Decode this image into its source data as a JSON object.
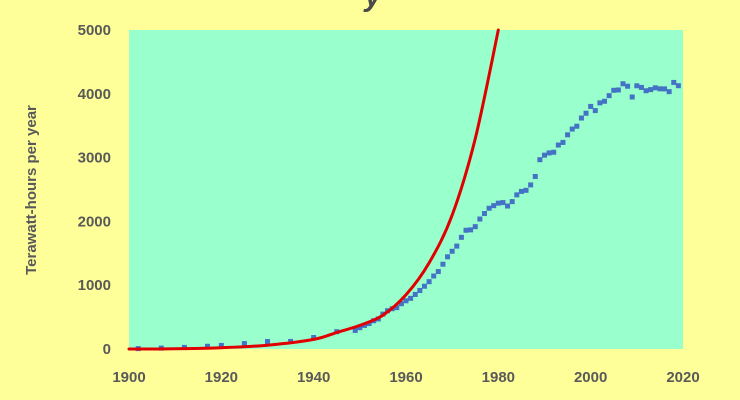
{
  "chart_data": {
    "type": "scatter",
    "title_fragment": "y",
    "xlabel": "",
    "ylabel": "Terawatt-hours per year",
    "xlim": [
      1900,
      2020
    ],
    "ylim": [
      0,
      5000
    ],
    "x_ticks": [
      1900,
      1920,
      1940,
      1960,
      1980,
      2000,
      2020
    ],
    "y_ticks": [
      0,
      1000,
      2000,
      3000,
      4000,
      5000
    ],
    "grid": false,
    "legend": "none",
    "colors": {
      "plot_background": "#99ffcc",
      "page_background": "#ffff99",
      "points": "#4472c4",
      "curve": "#e00000"
    },
    "series": [
      {
        "kind": "points",
        "x": [
          1902,
          1907,
          1912,
          1917,
          1920,
          1925,
          1930,
          1935,
          1940,
          1945,
          1949,
          1950,
          1951,
          1952,
          1953,
          1954,
          1955,
          1956,
          1957,
          1958,
          1959,
          1960,
          1961,
          1962,
          1963,
          1964,
          1965,
          1966,
          1967,
          1968,
          1969,
          1970,
          1971,
          1972,
          1973,
          1974,
          1975,
          1976,
          1977,
          1978,
          1979,
          1980,
          1981,
          1982,
          1983,
          1984,
          1985,
          1986,
          1987,
          1988,
          1989,
          1990,
          1991,
          1992,
          1993,
          1994,
          1995,
          1996,
          1997,
          1998,
          1999,
          2000,
          2001,
          2002,
          2003,
          2004,
          2005,
          2006,
          2007,
          2008,
          2009,
          2010,
          2011,
          2012,
          2013,
          2014,
          2015,
          2016,
          2017,
          2018,
          2019
        ],
        "y": [
          6,
          14,
          25,
          43,
          56,
          85,
          117,
          118,
          180,
          271,
          291,
          334,
          370,
          399,
          443,
          471,
          547,
          600,
          631,
          648,
          710,
          756,
          794,
          855,
          917,
          984,
          1055,
          1144,
          1214,
          1329,
          1445,
          1532,
          1613,
          1750,
          1861,
          1867,
          1918,
          2037,
          2124,
          2206,
          2247,
          2286,
          2295,
          2241,
          2310,
          2416,
          2470,
          2487,
          2572,
          2704,
          2967,
          3038,
          3073,
          3084,
          3197,
          3238,
          3357,
          3447,
          3492,
          3620,
          3695,
          3802,
          3737,
          3858,
          3883,
          3971,
          4055,
          4060,
          4157,
          4119,
          3950,
          4126,
          4100,
          4048,
          4066,
          4094,
          4078,
          4077,
          4034,
          4178,
          4127
        ]
      },
      {
        "kind": "curve",
        "x": [
          1900,
          1910,
          1920,
          1930,
          1940,
          1945,
          1950,
          1955,
          1960,
          1965,
          1970,
          1975,
          1980
        ],
        "y": [
          0,
          3,
          20,
          60,
          150,
          260,
          370,
          530,
          850,
          1350,
          2100,
          3300,
          5000
        ]
      }
    ]
  }
}
